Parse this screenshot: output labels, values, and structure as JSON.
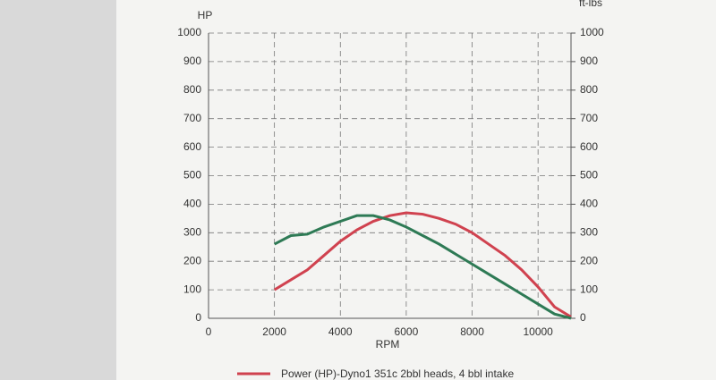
{
  "chart_data": {
    "type": "line",
    "y_label": "HP",
    "y2_label": "ft-lbs",
    "x_label": "RPM",
    "x": [
      2000,
      2500,
      3000,
      3500,
      4000,
      4500,
      5000,
      5500,
      6000,
      6500,
      7000,
      7500,
      8000,
      8500,
      9000,
      9500,
      10000,
      10500,
      11000
    ],
    "series": [
      {
        "name": "Power (HP)-Dyno1 351c 2bbl heads, 4 bbl intake",
        "color": "#d0424f",
        "values": [
          100,
          135,
          170,
          220,
          270,
          310,
          340,
          360,
          370,
          365,
          350,
          330,
          300,
          260,
          220,
          170,
          110,
          40,
          5
        ]
      },
      {
        "color": "#2e7a55",
        "axis": "y2",
        "values": [
          260,
          290,
          295,
          320,
          340,
          360,
          360,
          345,
          320,
          290,
          260,
          225,
          190,
          155,
          120,
          85,
          50,
          15,
          0
        ]
      }
    ],
    "xlim": [
      0,
      11000
    ],
    "xticks": [
      0,
      2000,
      4000,
      6000,
      8000,
      10000
    ],
    "ylim": [
      0,
      1000
    ],
    "yticks": [
      0,
      100,
      200,
      300,
      400,
      500,
      600,
      700,
      800,
      900,
      1000
    ],
    "y2lim": [
      0,
      1000
    ],
    "y2ticks": [
      0,
      100,
      200,
      300,
      400,
      500,
      600,
      700,
      800,
      900,
      1000
    ],
    "grid": true
  }
}
